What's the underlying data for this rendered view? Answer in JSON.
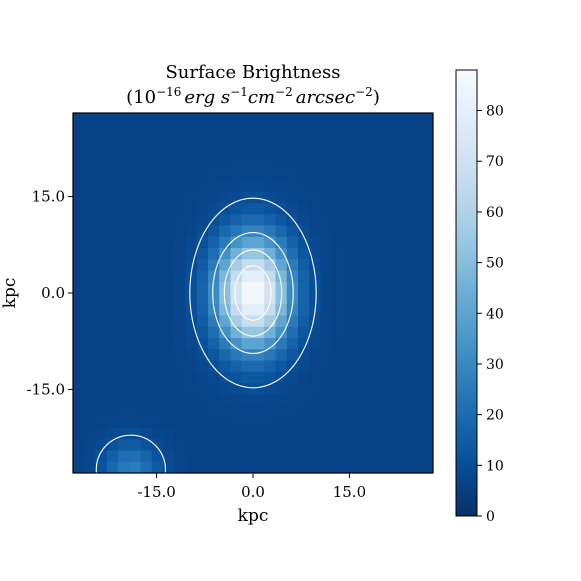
{
  "chart_data": {
    "type": "heatmap",
    "title": "Surface Brightness",
    "subtitle_parts": {
      "base": "(10",
      "exp1": "−16",
      "erg": "erg s",
      "exp2": "−1",
      "cm": "cm",
      "exp3": "−2",
      "arcsec": "arcsec",
      "exp4": "−2",
      "close": ")"
    },
    "xlabel": "kpc",
    "ylabel": "kpc",
    "xlim": [
      -28,
      28
    ],
    "ylim": [
      -28,
      28
    ],
    "x_ticks": [
      -15.0,
      0.0,
      15.0
    ],
    "x_tick_labels": [
      "-15.0",
      "0.0",
      "15.0"
    ],
    "y_ticks": [
      -15.0,
      0.0,
      15.0
    ],
    "y_tick_labels": [
      "-15.0",
      "0.0",
      "15.0"
    ],
    "colorbar": {
      "min": 0,
      "max": 88,
      "ticks": [
        0,
        10,
        20,
        30,
        40,
        50,
        60,
        70,
        80
      ],
      "tick_labels": [
        "0",
        "10",
        "20",
        "30",
        "40",
        "50",
        "60",
        "70",
        "80"
      ],
      "colormap": "Blues_r"
    },
    "grid_size": 32,
    "sources": [
      {
        "name": "central",
        "x": 0,
        "y": 0,
        "peak": 88,
        "sigma_x": 4.0,
        "sigma_y": 6.0
      },
      {
        "name": "secondary",
        "x": -19,
        "y": -27.5,
        "peak": 26,
        "sigma_x": 3.0,
        "sigma_y": 3.0
      }
    ],
    "background": 6,
    "contour_levels": [
      10,
      30,
      50,
      70
    ],
    "grid": false,
    "legend": false
  }
}
